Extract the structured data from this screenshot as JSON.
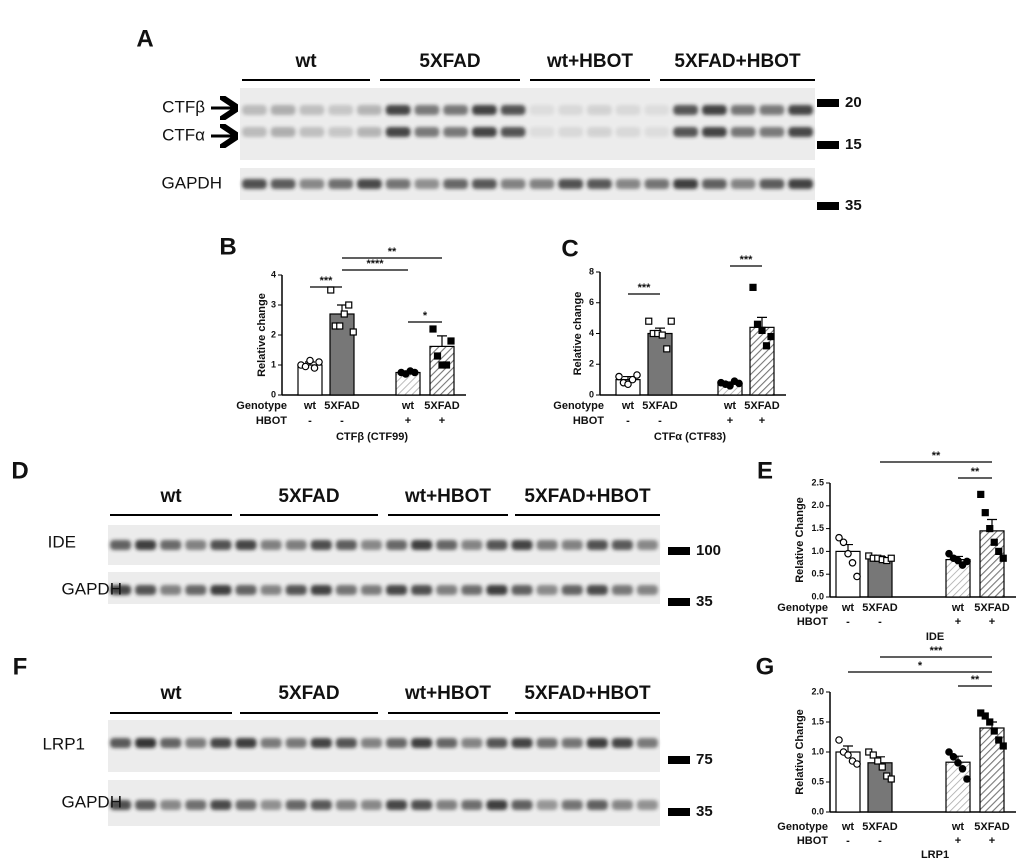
{
  "blots": [
    {
      "panel": "A",
      "groups": [
        "wt",
        "5XFAD",
        "wt+HBOT",
        "5XFAD+HBOT"
      ],
      "rows": [
        {
          "labels": [
            "CTFβ",
            "CTFα"
          ],
          "markers": [
            "20",
            "15"
          ]
        },
        {
          "labels": [
            "GAPDH"
          ],
          "markers": [
            "35"
          ]
        }
      ]
    },
    {
      "panel": "D",
      "groups": [
        "wt",
        "5XFAD",
        "wt+HBOT",
        "5XFAD+HBOT"
      ],
      "rows": [
        {
          "labels": [
            "IDE"
          ],
          "markers": [
            "100"
          ]
        },
        {
          "labels": [
            "GAPDH"
          ],
          "markers": [
            "35"
          ]
        }
      ]
    },
    {
      "panel": "F",
      "groups": [
        "wt",
        "5XFAD",
        "wt+HBOT",
        "5XFAD+HBOT"
      ],
      "rows": [
        {
          "labels": [
            "LRP1"
          ],
          "markers": [
            "75"
          ]
        },
        {
          "labels": [
            "GAPDH"
          ],
          "markers": [
            "35"
          ]
        }
      ]
    }
  ],
  "chart_data": [
    {
      "type": "bar",
      "panel": "B",
      "ylabel": "Relative change",
      "xlabel": "CTFβ (CTF99)",
      "row_labels": [
        "Genotype",
        "HBOT"
      ],
      "categories": [
        "wt",
        "5XFAD",
        "wt",
        "5XFAD"
      ],
      "hbot": [
        "-",
        "-",
        "+",
        "+"
      ],
      "values": [
        1.0,
        2.7,
        0.75,
        1.62
      ],
      "errors": [
        0.1,
        0.3,
        0.05,
        0.35
      ],
      "points": [
        [
          1.0,
          0.95,
          1.15,
          0.9,
          1.1
        ],
        [
          3.5,
          2.3,
          2.3,
          2.7,
          3.0,
          2.1
        ],
        [
          0.75,
          0.7,
          0.8,
          0.75
        ],
        [
          2.2,
          1.3,
          1.0,
          1.0,
          1.8
        ]
      ],
      "styles": [
        "white",
        "gray",
        "hatch-light",
        "hatch"
      ],
      "markers": [
        "open-circle",
        "open-square",
        "filled-circle",
        "filled-square"
      ],
      "ylim": [
        0,
        4
      ],
      "yticks": [
        0,
        1,
        2,
        3,
        4
      ],
      "significance": [
        {
          "from": 0,
          "to": 1,
          "label": "***"
        },
        {
          "from": 1,
          "to": 2,
          "label": "****"
        },
        {
          "from": 1,
          "to": 3,
          "label": "**"
        },
        {
          "from": 2,
          "to": 3,
          "label": "*"
        }
      ]
    },
    {
      "type": "bar",
      "panel": "C",
      "ylabel": "Relative change",
      "xlabel": "CTFα (CTF83)",
      "row_labels": [
        "Genotype",
        "HBOT"
      ],
      "categories": [
        "wt",
        "5XFAD",
        "wt",
        "5XFAD"
      ],
      "hbot": [
        "-",
        "-",
        "+",
        "+"
      ],
      "values": [
        1.0,
        4.0,
        0.75,
        4.4
      ],
      "errors": [
        0.2,
        0.35,
        0.1,
        0.65
      ],
      "points": [
        [
          1.2,
          0.8,
          0.7,
          1.0,
          1.3
        ],
        [
          4.8,
          4.0,
          4.0,
          3.9,
          3.0,
          4.8
        ],
        [
          0.8,
          0.7,
          0.6,
          0.9,
          0.75
        ],
        [
          7.0,
          4.6,
          4.2,
          3.2,
          3.8
        ]
      ],
      "styles": [
        "white",
        "gray",
        "hatch-light",
        "hatch"
      ],
      "markers": [
        "open-circle",
        "open-square",
        "filled-circle",
        "filled-square"
      ],
      "ylim": [
        0,
        8
      ],
      "yticks": [
        0,
        2,
        4,
        6,
        8
      ],
      "significance": [
        {
          "from": 0,
          "to": 1,
          "label": "***"
        },
        {
          "from": 2,
          "to": 3,
          "label": "***"
        }
      ]
    },
    {
      "type": "bar",
      "panel": "E",
      "ylabel": "Relative Change",
      "xlabel": "IDE",
      "row_labels": [
        "Genotype",
        "HBOT"
      ],
      "categories": [
        "wt",
        "5XFAD",
        "wt",
        "5XFAD"
      ],
      "hbot": [
        "-",
        "-",
        "+",
        "+"
      ],
      "values": [
        1.0,
        0.85,
        0.82,
        1.45
      ],
      "errors": [
        0.15,
        0.05,
        0.07,
        0.25
      ],
      "points": [
        [
          1.3,
          1.2,
          0.95,
          0.75,
          0.45
        ],
        [
          0.9,
          0.85,
          0.85,
          0.82,
          0.8,
          0.85
        ],
        [
          0.95,
          0.85,
          0.8,
          0.7,
          0.78
        ],
        [
          2.25,
          1.85,
          1.5,
          1.2,
          1.0,
          0.85
        ]
      ],
      "styles": [
        "white",
        "gray",
        "hatch-light",
        "hatch"
      ],
      "markers": [
        "open-circle",
        "open-square",
        "filled-circle",
        "filled-square"
      ],
      "ylim": [
        0,
        2.5
      ],
      "yticks": [
        {
          "value": 0,
          "label": "0.0"
        },
        0.5,
        {
          "value": 1,
          "label": "1.0"
        },
        1.5,
        {
          "value": 2,
          "label": "2.0"
        },
        2.5
      ],
      "significance": [
        {
          "from": 2,
          "to": 3,
          "label": "**"
        },
        {
          "from": 1,
          "to": 3,
          "label": "**"
        }
      ]
    },
    {
      "type": "bar",
      "panel": "G",
      "ylabel": "Relative Change",
      "xlabel": "LRP1",
      "row_labels": [
        "Genotype",
        "HBOT"
      ],
      "categories": [
        "wt",
        "5XFAD",
        "wt",
        "5XFAD"
      ],
      "hbot": [
        "-",
        "-",
        "+",
        "+"
      ],
      "values": [
        1.0,
        0.82,
        0.83,
        1.4
      ],
      "errors": [
        0.1,
        0.1,
        0.1,
        0.1
      ],
      "points": [
        [
          1.2,
          1.0,
          0.95,
          0.85,
          0.8
        ],
        [
          1.0,
          0.95,
          0.85,
          0.75,
          0.6,
          0.55
        ],
        [
          1.0,
          0.92,
          0.82,
          0.72,
          0.55
        ],
        [
          1.65,
          1.6,
          1.5,
          1.35,
          1.2,
          1.1
        ]
      ],
      "styles": [
        "white",
        "gray",
        "hatch-light",
        "hatch"
      ],
      "markers": [
        "open-circle",
        "open-square",
        "filled-circle",
        "filled-square"
      ],
      "ylim": [
        0,
        2.0
      ],
      "yticks": [
        {
          "value": 0,
          "label": "0.0"
        },
        0.5,
        {
          "value": 1,
          "label": "1.0"
        },
        1.5,
        {
          "value": 2,
          "label": "2.0"
        }
      ],
      "significance": [
        {
          "from": 0,
          "to": 3,
          "label": "*"
        },
        {
          "from": 1,
          "to": 3,
          "label": "***"
        },
        {
          "from": 2,
          "to": 3,
          "label": "**"
        }
      ]
    }
  ]
}
